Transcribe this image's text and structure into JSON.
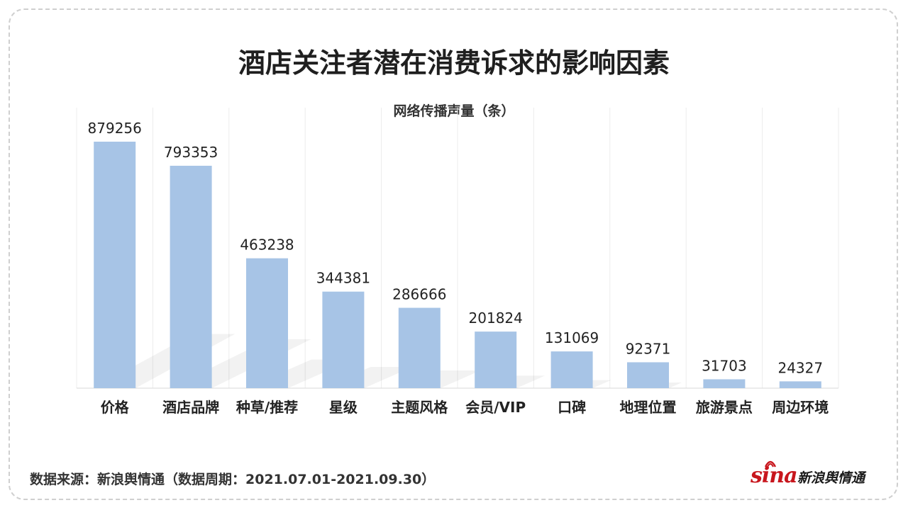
{
  "title": "酒店关注者潜在消费诉求的影响因素",
  "chart_data": {
    "type": "bar",
    "title": "酒店关注者潜在消费诉求的影响因素",
    "series_label": "网络传播声量（条）",
    "categories": [
      "价格",
      "酒店品牌",
      "种草/推荐",
      "星级",
      "主题风格",
      "会员/VIP",
      "口碑",
      "地理位置",
      "旅游景点",
      "周边环境"
    ],
    "values": [
      879256,
      793353,
      463238,
      344381,
      286666,
      201824,
      131069,
      92371,
      31703,
      24327
    ],
    "ylim": [
      0,
      879256
    ],
    "grid": true,
    "bar_color": "#a7c4e6"
  },
  "footer": {
    "source": "数据来源：新浪舆情通（数据周期：2021.07.01-2021.09.30）"
  },
  "brand": {
    "logo_text": "sina",
    "name": "新浪舆情通",
    "color": "#c8161d"
  }
}
